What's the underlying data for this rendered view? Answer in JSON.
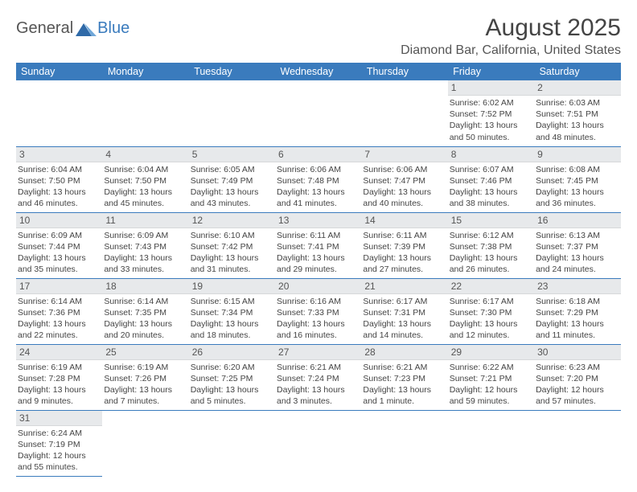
{
  "logo": {
    "part1": "General",
    "part2": "Blue"
  },
  "title": "August 2025",
  "location": "Diamond Bar, California, United States",
  "colors": {
    "header_bg": "#3a7bbd",
    "daynum_bg": "#e7e9eb",
    "border": "#3a7bbd"
  },
  "weekdays": [
    "Sunday",
    "Monday",
    "Tuesday",
    "Wednesday",
    "Thursday",
    "Friday",
    "Saturday"
  ],
  "weeks": [
    [
      null,
      null,
      null,
      null,
      null,
      {
        "n": "1",
        "sr": "Sunrise: 6:02 AM",
        "ss": "Sunset: 7:52 PM",
        "dl1": "Daylight: 13 hours",
        "dl2": "and 50 minutes."
      },
      {
        "n": "2",
        "sr": "Sunrise: 6:03 AM",
        "ss": "Sunset: 7:51 PM",
        "dl1": "Daylight: 13 hours",
        "dl2": "and 48 minutes."
      }
    ],
    [
      {
        "n": "3",
        "sr": "Sunrise: 6:04 AM",
        "ss": "Sunset: 7:50 PM",
        "dl1": "Daylight: 13 hours",
        "dl2": "and 46 minutes."
      },
      {
        "n": "4",
        "sr": "Sunrise: 6:04 AM",
        "ss": "Sunset: 7:50 PM",
        "dl1": "Daylight: 13 hours",
        "dl2": "and 45 minutes."
      },
      {
        "n": "5",
        "sr": "Sunrise: 6:05 AM",
        "ss": "Sunset: 7:49 PM",
        "dl1": "Daylight: 13 hours",
        "dl2": "and 43 minutes."
      },
      {
        "n": "6",
        "sr": "Sunrise: 6:06 AM",
        "ss": "Sunset: 7:48 PM",
        "dl1": "Daylight: 13 hours",
        "dl2": "and 41 minutes."
      },
      {
        "n": "7",
        "sr": "Sunrise: 6:06 AM",
        "ss": "Sunset: 7:47 PM",
        "dl1": "Daylight: 13 hours",
        "dl2": "and 40 minutes."
      },
      {
        "n": "8",
        "sr": "Sunrise: 6:07 AM",
        "ss": "Sunset: 7:46 PM",
        "dl1": "Daylight: 13 hours",
        "dl2": "and 38 minutes."
      },
      {
        "n": "9",
        "sr": "Sunrise: 6:08 AM",
        "ss": "Sunset: 7:45 PM",
        "dl1": "Daylight: 13 hours",
        "dl2": "and 36 minutes."
      }
    ],
    [
      {
        "n": "10",
        "sr": "Sunrise: 6:09 AM",
        "ss": "Sunset: 7:44 PM",
        "dl1": "Daylight: 13 hours",
        "dl2": "and 35 minutes."
      },
      {
        "n": "11",
        "sr": "Sunrise: 6:09 AM",
        "ss": "Sunset: 7:43 PM",
        "dl1": "Daylight: 13 hours",
        "dl2": "and 33 minutes."
      },
      {
        "n": "12",
        "sr": "Sunrise: 6:10 AM",
        "ss": "Sunset: 7:42 PM",
        "dl1": "Daylight: 13 hours",
        "dl2": "and 31 minutes."
      },
      {
        "n": "13",
        "sr": "Sunrise: 6:11 AM",
        "ss": "Sunset: 7:41 PM",
        "dl1": "Daylight: 13 hours",
        "dl2": "and 29 minutes."
      },
      {
        "n": "14",
        "sr": "Sunrise: 6:11 AM",
        "ss": "Sunset: 7:39 PM",
        "dl1": "Daylight: 13 hours",
        "dl2": "and 27 minutes."
      },
      {
        "n": "15",
        "sr": "Sunrise: 6:12 AM",
        "ss": "Sunset: 7:38 PM",
        "dl1": "Daylight: 13 hours",
        "dl2": "and 26 minutes."
      },
      {
        "n": "16",
        "sr": "Sunrise: 6:13 AM",
        "ss": "Sunset: 7:37 PM",
        "dl1": "Daylight: 13 hours",
        "dl2": "and 24 minutes."
      }
    ],
    [
      {
        "n": "17",
        "sr": "Sunrise: 6:14 AM",
        "ss": "Sunset: 7:36 PM",
        "dl1": "Daylight: 13 hours",
        "dl2": "and 22 minutes."
      },
      {
        "n": "18",
        "sr": "Sunrise: 6:14 AM",
        "ss": "Sunset: 7:35 PM",
        "dl1": "Daylight: 13 hours",
        "dl2": "and 20 minutes."
      },
      {
        "n": "19",
        "sr": "Sunrise: 6:15 AM",
        "ss": "Sunset: 7:34 PM",
        "dl1": "Daylight: 13 hours",
        "dl2": "and 18 minutes."
      },
      {
        "n": "20",
        "sr": "Sunrise: 6:16 AM",
        "ss": "Sunset: 7:33 PM",
        "dl1": "Daylight: 13 hours",
        "dl2": "and 16 minutes."
      },
      {
        "n": "21",
        "sr": "Sunrise: 6:17 AM",
        "ss": "Sunset: 7:31 PM",
        "dl1": "Daylight: 13 hours",
        "dl2": "and 14 minutes."
      },
      {
        "n": "22",
        "sr": "Sunrise: 6:17 AM",
        "ss": "Sunset: 7:30 PM",
        "dl1": "Daylight: 13 hours",
        "dl2": "and 12 minutes."
      },
      {
        "n": "23",
        "sr": "Sunrise: 6:18 AM",
        "ss": "Sunset: 7:29 PM",
        "dl1": "Daylight: 13 hours",
        "dl2": "and 11 minutes."
      }
    ],
    [
      {
        "n": "24",
        "sr": "Sunrise: 6:19 AM",
        "ss": "Sunset: 7:28 PM",
        "dl1": "Daylight: 13 hours",
        "dl2": "and 9 minutes."
      },
      {
        "n": "25",
        "sr": "Sunrise: 6:19 AM",
        "ss": "Sunset: 7:26 PM",
        "dl1": "Daylight: 13 hours",
        "dl2": "and 7 minutes."
      },
      {
        "n": "26",
        "sr": "Sunrise: 6:20 AM",
        "ss": "Sunset: 7:25 PM",
        "dl1": "Daylight: 13 hours",
        "dl2": "and 5 minutes."
      },
      {
        "n": "27",
        "sr": "Sunrise: 6:21 AM",
        "ss": "Sunset: 7:24 PM",
        "dl1": "Daylight: 13 hours",
        "dl2": "and 3 minutes."
      },
      {
        "n": "28",
        "sr": "Sunrise: 6:21 AM",
        "ss": "Sunset: 7:23 PM",
        "dl1": "Daylight: 13 hours",
        "dl2": "and 1 minute."
      },
      {
        "n": "29",
        "sr": "Sunrise: 6:22 AM",
        "ss": "Sunset: 7:21 PM",
        "dl1": "Daylight: 12 hours",
        "dl2": "and 59 minutes."
      },
      {
        "n": "30",
        "sr": "Sunrise: 6:23 AM",
        "ss": "Sunset: 7:20 PM",
        "dl1": "Daylight: 12 hours",
        "dl2": "and 57 minutes."
      }
    ],
    [
      {
        "n": "31",
        "sr": "Sunrise: 6:24 AM",
        "ss": "Sunset: 7:19 PM",
        "dl1": "Daylight: 12 hours",
        "dl2": "and 55 minutes."
      },
      null,
      null,
      null,
      null,
      null,
      null
    ]
  ]
}
